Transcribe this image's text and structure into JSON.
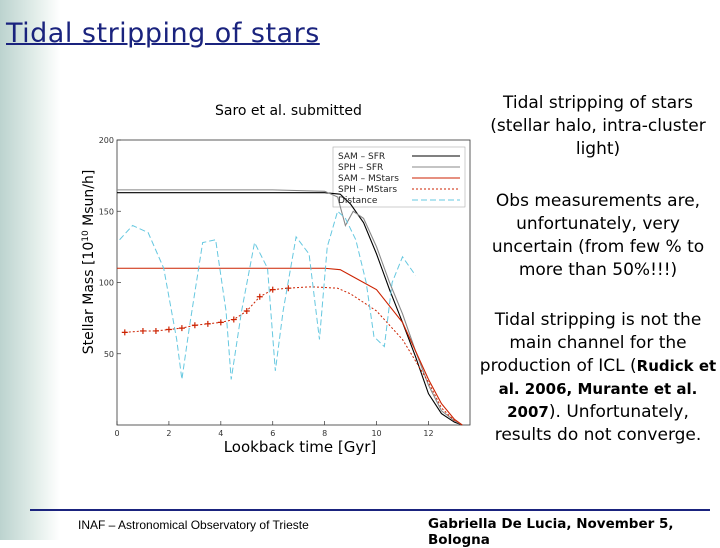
{
  "title": "Tidal stripping of stars",
  "paragraphs": [
    {
      "parts": [
        "Tidal stripping of stars (stellar halo, intra-cluster light)"
      ]
    },
    {
      "parts": [
        "Obs measurements are, unfortunately, very uncertain (from few % to more than 50%!!!)"
      ]
    },
    {
      "parts": [
        "Tidal stripping is not the main channel for the production of ICL (",
        "Rudick et al. 2006",
        ", ",
        "Murante et al. 2007",
        "). Unfortunately, results do not converge."
      ]
    }
  ],
  "footer": {
    "left": "INAF – Astronomical Observatory of Trieste",
    "right": "Gabriella De Lucia, November 5, Bologna"
  },
  "chart_data": {
    "type": "line",
    "annotation": "Saro et al. submitted",
    "x_label": "Lookback time [Gyr]",
    "y_label": [
      "Stellar Mass [10",
      "10",
      " Msun/h]"
    ],
    "xlim": [
      0,
      13.6
    ],
    "xticks": [
      0,
      2,
      4,
      6,
      8,
      10,
      12
    ],
    "ylim": [
      0,
      200
    ],
    "yticks": [
      50,
      100,
      150,
      200
    ],
    "series": [
      {
        "name": "SAM – SFR",
        "color": "#000000",
        "dash": "none",
        "x": [
          0,
          2,
          4,
          6,
          8,
          8.6,
          9,
          9.5,
          10,
          10.5,
          11,
          11.5,
          12,
          12.5,
          13,
          13.3
        ],
        "values": [
          163,
          163,
          163,
          163,
          163,
          162,
          155,
          142,
          120,
          95,
          72,
          48,
          22,
          8,
          2,
          0
        ]
      },
      {
        "name": "SPH – SFR",
        "color": "#888888",
        "dash": "none",
        "x": [
          0,
          2,
          4,
          6,
          8,
          8.5,
          8.8,
          9.1,
          9.5,
          10,
          10.5,
          11,
          11.5,
          12,
          12.5,
          13,
          13.3
        ],
        "values": [
          165,
          165,
          165,
          165,
          164,
          160,
          140,
          150,
          145,
          125,
          100,
          78,
          52,
          28,
          10,
          3,
          0
        ]
      },
      {
        "name": "SAM – MStars",
        "color": "#cc2200",
        "dash": "none",
        "x": [
          0,
          2,
          4,
          6,
          8,
          8.6,
          9,
          10,
          11,
          12,
          12.5,
          13,
          13.3
        ],
        "values": [
          110,
          110,
          110,
          110,
          110,
          109,
          105,
          95,
          72,
          32,
          15,
          4,
          0
        ]
      },
      {
        "name": "SPH – MStars",
        "color": "#cc2200",
        "dash": "2,2",
        "marker": "+",
        "x": [
          0.3,
          1,
          1.5,
          2,
          2.5,
          3,
          3.5,
          4,
          4.5,
          5,
          5.5,
          6,
          6.6,
          7.5,
          8.5,
          9,
          10,
          11,
          12,
          12.5,
          13
        ],
        "values": [
          65,
          66,
          66,
          67,
          68,
          70,
          71,
          72,
          74,
          80,
          90,
          95,
          96,
          97,
          96,
          92,
          80,
          60,
          30,
          12,
          3
        ]
      },
      {
        "name": "Distance",
        "color": "#66c8e0",
        "dash": "6,3",
        "x": [
          0.1,
          0.6,
          1.2,
          1.8,
          2.3,
          2.5,
          2.8,
          3.3,
          3.8,
          4.2,
          4.4,
          4.8,
          5.3,
          5.8,
          6.1,
          6.4,
          6.9,
          7.4,
          7.8,
          8.1,
          8.5,
          8.8,
          9.2,
          9.6,
          9.9,
          10.3,
          10.6,
          11,
          11.5
        ],
        "values": [
          130,
          140,
          135,
          110,
          60,
          32,
          70,
          128,
          130,
          80,
          32,
          80,
          128,
          110,
          38,
          80,
          132,
          120,
          60,
          125,
          150,
          145,
          130,
          100,
          62,
          55,
          100,
          118,
          105
        ]
      }
    ],
    "legend": "upper right",
    "grid": false
  }
}
